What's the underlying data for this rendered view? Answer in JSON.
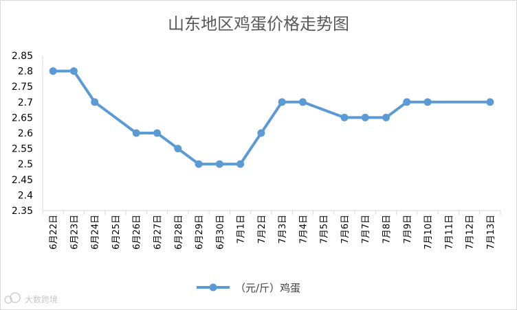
{
  "chart_data": {
    "type": "line",
    "title": "山东地区鸡蛋价格走势图",
    "categories": [
      "6月22日",
      "6月23日",
      "6月24日",
      "6月25日",
      "6月26日",
      "6月27日",
      "6月28日",
      "6月29日",
      "6月30日",
      "7月1日",
      "7月2日",
      "7月3日",
      "7月4日",
      "7月5日",
      "7月6日",
      "7月7日",
      "7月8日",
      "7月9日",
      "7月10日",
      "7月11日",
      "7月12日",
      "7月13日"
    ],
    "series": [
      {
        "name": "（元/斤）鸡蛋",
        "values": [
          2.8,
          2.8,
          2.7,
          null,
          2.6,
          2.6,
          2.55,
          2.5,
          2.5,
          2.5,
          2.6,
          2.7,
          2.7,
          null,
          2.65,
          2.65,
          2.65,
          2.7,
          2.7,
          null,
          null,
          2.7
        ]
      }
    ],
    "yticks": [
      "2.35",
      "2.4",
      "2.45",
      "2.5",
      "2.55",
      "2.6",
      "2.65",
      "2.7",
      "2.75",
      "2.8",
      "2.85"
    ],
    "ylim": [
      2.35,
      2.85
    ],
    "grid": false,
    "legend": "bottom",
    "color": "#5b9bd5"
  },
  "watermark": "大数跨境",
  "watermark_icon": "cloud-logo-icon"
}
